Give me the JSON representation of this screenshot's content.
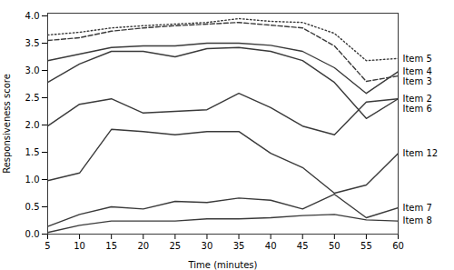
{
  "chart_data": {
    "type": "line",
    "xlabel": "Time (minutes)",
    "ylabel": "Responsiveness score",
    "x": [
      5,
      10,
      15,
      20,
      25,
      30,
      35,
      40,
      45,
      50,
      55,
      60
    ],
    "color": "#3a3a3a",
    "series": [
      {
        "name": "Item 5",
        "line_style": "dotted",
        "values": [
          3.65,
          3.7,
          3.78,
          3.82,
          3.85,
          3.88,
          3.95,
          3.9,
          3.88,
          3.68,
          3.18,
          3.22
        ]
      },
      {
        "name": "Item 3",
        "line_style": "dashed",
        "values": [
          3.55,
          3.6,
          3.72,
          3.78,
          3.82,
          3.85,
          3.88,
          3.83,
          3.78,
          3.45,
          2.8,
          2.9
        ]
      },
      {
        "name": "Item 4",
        "line_style": "solid",
        "values": [
          3.18,
          3.3,
          3.42,
          3.45,
          3.45,
          3.5,
          3.5,
          3.46,
          3.35,
          3.05,
          2.58,
          2.98
        ]
      },
      {
        "name": "Item 2",
        "line_style": "solid",
        "values": [
          2.78,
          3.12,
          3.35,
          3.35,
          3.25,
          3.4,
          3.42,
          3.35,
          3.18,
          2.78,
          2.12,
          2.48
        ]
      },
      {
        "name": "Item 6",
        "line_style": "solid",
        "values": [
          1.98,
          2.38,
          2.48,
          2.22,
          2.25,
          2.28,
          2.58,
          2.32,
          1.98,
          1.82,
          2.42,
          2.48
        ]
      },
      {
        "name": "Item 12",
        "line_style": "solid",
        "values": [
          0.98,
          1.12,
          1.92,
          1.88,
          1.82,
          1.88,
          1.88,
          1.48,
          1.22,
          0.75,
          0.9,
          1.48
        ]
      },
      {
        "name": "Item 7",
        "line_style": "solid",
        "values": [
          0.14,
          0.36,
          0.5,
          0.46,
          0.6,
          0.58,
          0.66,
          0.62,
          0.46,
          0.73,
          0.3,
          0.48
        ]
      },
      {
        "name": "Item 8",
        "line_style": "solid",
        "values": [
          0.03,
          0.16,
          0.24,
          0.24,
          0.24,
          0.28,
          0.28,
          0.3,
          0.34,
          0.36,
          0.26,
          0.24
        ]
      }
    ],
    "xlim": [
      5,
      60
    ],
    "xticks": [
      5,
      10,
      15,
      20,
      25,
      30,
      35,
      40,
      45,
      50,
      55,
      60
    ],
    "ylim": [
      0,
      4.05
    ],
    "yticks": [
      {
        "value": 0,
        "label": "0.0"
      },
      0.5,
      {
        "value": 1.0,
        "label": "1.0"
      },
      1.5,
      {
        "value": 2.0,
        "label": "2.0"
      },
      2.5,
      {
        "value": 3.0,
        "label": "3.0"
      },
      3.5,
      {
        "value": 4.0,
        "label": "4.0"
      }
    ],
    "grid": false
  }
}
